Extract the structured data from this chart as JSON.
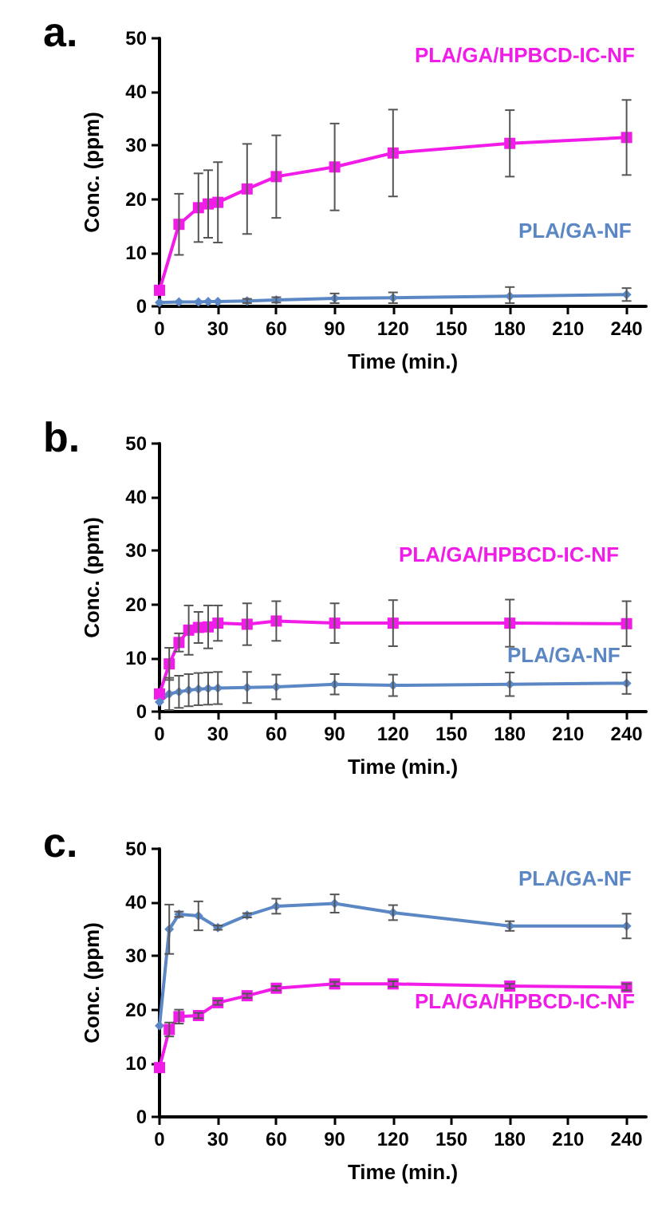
{
  "chart_data": [
    {
      "type": "line",
      "title": "a.",
      "xlabel": "Time (min.)",
      "ylabel": "Conc. (ppm)",
      "xlim": [
        0,
        250
      ],
      "xticks": [
        0,
        30,
        60,
        90,
        120,
        150,
        180,
        210,
        240
      ],
      "ylim": [
        0,
        50
      ],
      "yticks": [
        0,
        10,
        20,
        30,
        40,
        50
      ],
      "grid": false,
      "legend": false,
      "series": [
        {
          "name": "PLA/GA/HPBCD-IC-NF",
          "color": "#f21ce8",
          "marker": "square",
          "x": [
            0,
            10,
            20,
            25,
            30,
            45,
            60,
            90,
            120,
            180,
            240
          ],
          "values": [
            3,
            15.3,
            18.4,
            19.1,
            19.4,
            21.9,
            24.2,
            26,
            28.6,
            30.4,
            31.5
          ],
          "errors": [
            null,
            5.7,
            6.4,
            6.3,
            7.5,
            8.4,
            7.7,
            8.1,
            8.1,
            6.2,
            7
          ]
        },
        {
          "name": "PLA/GA-NF",
          "color": "#5b87c5",
          "marker": "diamond",
          "x": [
            0,
            10,
            20,
            25,
            30,
            45,
            60,
            90,
            120,
            180,
            240
          ],
          "values": [
            0.7,
            0.8,
            0.8,
            0.9,
            0.9,
            1.0,
            1.2,
            1.5,
            1.6,
            1.9,
            2.2
          ],
          "errors": [
            null,
            null,
            null,
            null,
            null,
            0.4,
            0.5,
            0.9,
            1,
            [
              0.6,
              3.6
            ],
            1.2
          ]
        }
      ]
    },
    {
      "type": "line",
      "title": "b.",
      "xlabel": "Time (min.)",
      "ylabel": "Conc. (ppm)",
      "xlim": [
        0,
        250
      ],
      "xticks": [
        0,
        30,
        60,
        90,
        120,
        150,
        180,
        210,
        240
      ],
      "ylim": [
        0,
        50
      ],
      "yticks": [
        0,
        10,
        20,
        30,
        40,
        50
      ],
      "grid": false,
      "legend": false,
      "series": [
        {
          "name": "PLA/GA/HPBCD-IC-NF",
          "color": "#f21ce8",
          "marker": "square",
          "x": [
            0,
            5,
            10,
            15,
            20,
            25,
            30,
            45,
            60,
            90,
            120,
            180,
            240
          ],
          "values": [
            3.3,
            8.9,
            12.9,
            15.2,
            15.7,
            15.8,
            16.5,
            16.3,
            16.9,
            16.5,
            16.5,
            16.5,
            16.4
          ],
          "errors": [
            null,
            3,
            1.7,
            4.6,
            2.9,
            4,
            3.3,
            3.9,
            3.7,
            3.7,
            4.3,
            4.4,
            4.2
          ]
        },
        {
          "name": "PLA/GA-NF",
          "color": "#5b87c5",
          "marker": "diamond",
          "x": [
            0,
            5,
            10,
            15,
            20,
            25,
            30,
            45,
            60,
            90,
            120,
            180,
            240
          ],
          "values": [
            1.8,
            3.3,
            3.7,
            4,
            4.2,
            4.3,
            4.4,
            4.5,
            4.6,
            5.1,
            4.9,
            5.1,
            5.3
          ],
          "errors": [
            null,
            3,
            3,
            3,
            3,
            3,
            3,
            2.9,
            2.3,
            1.9,
            2,
            2.2,
            2
          ]
        }
      ]
    },
    {
      "type": "line",
      "title": "c.",
      "xlabel": "Time (min.)",
      "ylabel": "Conc. (ppm)",
      "xlim": [
        0,
        250
      ],
      "xticks": [
        0,
        30,
        60,
        90,
        120,
        150,
        180,
        210,
        240
      ],
      "ylim": [
        0,
        50
      ],
      "yticks": [
        0,
        10,
        20,
        30,
        40,
        50
      ],
      "grid": false,
      "legend": false,
      "series": [
        {
          "name": "PLA/GA-NF",
          "color": "#5b87c5",
          "marker": "diamond",
          "x": [
            0,
            5,
            10,
            20,
            30,
            45,
            60,
            90,
            120,
            180,
            240
          ],
          "values": [
            17,
            35,
            37.8,
            37.5,
            35.3,
            37.6,
            39.3,
            39.8,
            38.1,
            35.6,
            35.6
          ],
          "errors": [
            null,
            4.6,
            0.5,
            2.7,
            0.4,
            0.4,
            1.4,
            1.7,
            1.4,
            0.9,
            2.3
          ]
        },
        {
          "name": "PLA/GA/HPBCD-IC-NF",
          "color": "#f21ce8",
          "marker": "square",
          "x": [
            0,
            5,
            10,
            20,
            30,
            45,
            60,
            90,
            120,
            180,
            240
          ],
          "values": [
            9.2,
            16.3,
            18.7,
            18.9,
            21.3,
            22.6,
            24,
            24.8,
            24.8,
            24.4,
            24.2
          ],
          "errors": [
            null,
            1.3,
            1.3,
            0.5,
            0.4,
            0.4,
            0.4,
            0.4,
            0.5,
            0.4,
            0.6
          ]
        }
      ]
    }
  ]
}
